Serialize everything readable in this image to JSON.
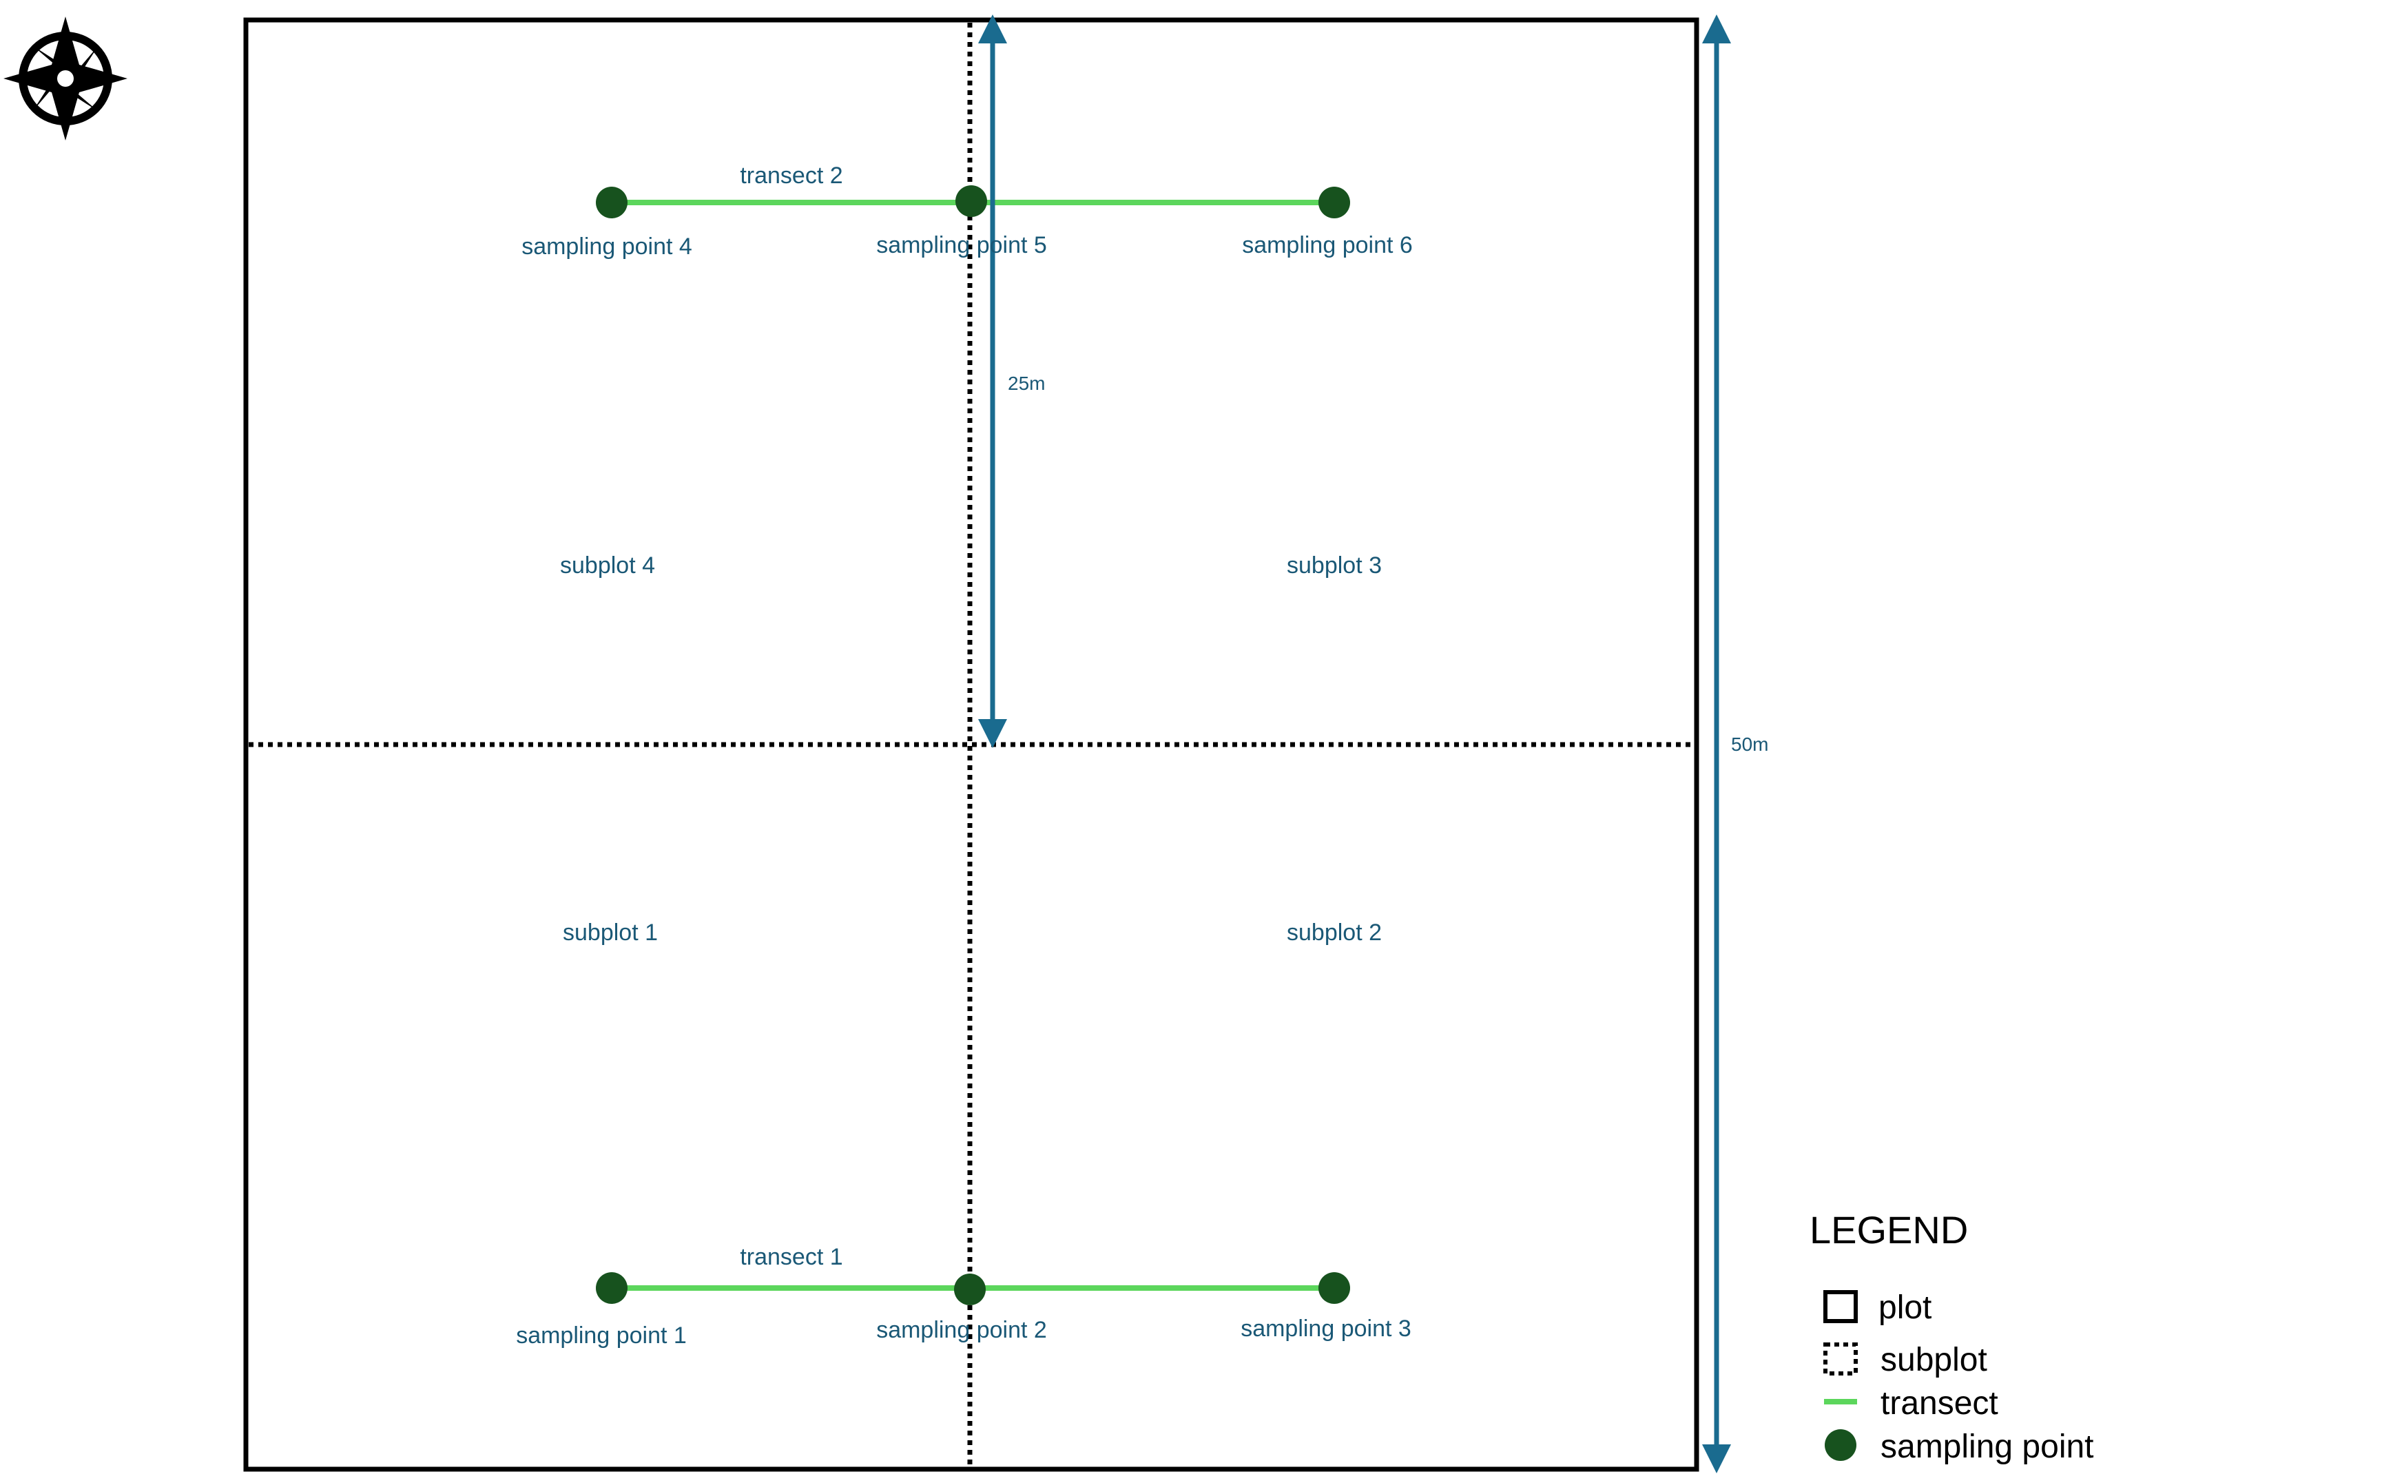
{
  "colors": {
    "plot_border": "#000000",
    "subplot_line": "#000000",
    "transect": "#5cd65c",
    "sampling_point": "#17521e",
    "label_text": "#1a5876",
    "dimension_arrow": "#1a6b8f"
  },
  "icons": {
    "compass": "compass-rose-icon"
  },
  "subplots": [
    {
      "label": "subplot 4"
    },
    {
      "label": "subplot 3"
    },
    {
      "label": "subplot 1"
    },
    {
      "label": "subplot 2"
    }
  ],
  "transects": [
    {
      "label": "transect 2"
    },
    {
      "label": "transect 1"
    }
  ],
  "sampling_points": [
    {
      "label": "sampling point 4"
    },
    {
      "label": "sampling point 5"
    },
    {
      "label": "sampling point 6"
    },
    {
      "label": "sampling point 1"
    },
    {
      "label": "sampling point 2"
    },
    {
      "label": "sampling point 3"
    }
  ],
  "dimensions": {
    "subplot_height": "25m",
    "plot_height": "50m"
  },
  "legend": {
    "title": "LEGEND",
    "items": [
      {
        "symbol": "plot",
        "label": "plot"
      },
      {
        "symbol": "subplot",
        "label": "subplot"
      },
      {
        "symbol": "transect",
        "label": "transect"
      },
      {
        "symbol": "sampling-point",
        "label": "sampling point"
      }
    ]
  }
}
